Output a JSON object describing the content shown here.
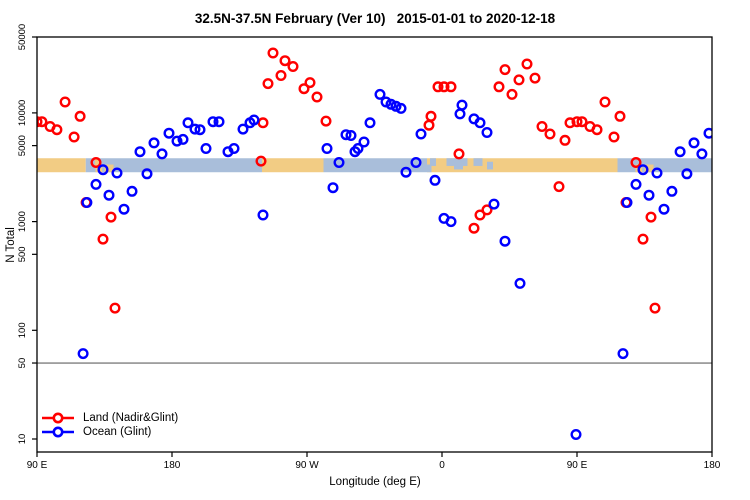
{
  "title": "32.5N-37.5N February (Ver 10)   2015-01-01 to 2020-12-18",
  "chart_data": {
    "type": "scatter",
    "x_axis": {
      "title": "Longitude (deg E)",
      "range": [
        90,
        540
      ],
      "ticks": [
        {
          "value": 90,
          "label": "90 E"
        },
        {
          "value": 180,
          "label": "180"
        },
        {
          "value": 270,
          "label": "90 W"
        },
        {
          "value": 360,
          "label": "0"
        },
        {
          "value": 450,
          "label": "90 E"
        },
        {
          "value": 540,
          "label": "180"
        }
      ]
    },
    "y_axis": {
      "title": "N Total",
      "scale": "log",
      "range": [
        10,
        50000
      ],
      "ticks": [
        {
          "value": 50000,
          "label": "50000"
        },
        {
          "value": 10000,
          "label": "10000"
        },
        {
          "value": 5000,
          "label": "5000"
        },
        {
          "value": 1000,
          "label": "1000"
        },
        {
          "value": 500,
          "label": "500"
        },
        {
          "value": 100,
          "label": "100"
        },
        {
          "value": 50,
          "label": "50"
        },
        {
          "value": 10,
          "label": "10"
        }
      ]
    },
    "reference_line": {
      "value": 50,
      "color": "#7f7f7f"
    },
    "coast_band": {
      "n_center": 3300,
      "colors": {
        "land": "#F2CC84",
        "ocean": "#A9BEDA"
      },
      "segments": [
        {
          "from": 90,
          "to": 122.5,
          "type": "land"
        },
        {
          "from": 122.5,
          "to": 240,
          "type": "ocean"
        },
        {
          "from": 240,
          "to": 281,
          "type": "land"
        },
        {
          "from": 281,
          "to": 350,
          "type": "ocean"
        },
        {
          "from": 350,
          "to": 477,
          "type": "land"
        },
        {
          "from": 477,
          "to": 540,
          "type": "ocean"
        }
      ],
      "patches": [
        {
          "from": 129,
          "to": 133.5,
          "type": "land",
          "pos": "bottom"
        },
        {
          "from": 135,
          "to": 141,
          "type": "land",
          "pos": "bottom"
        },
        {
          "from": 128.5,
          "to": 131.5,
          "type": "land",
          "pos": "top"
        },
        {
          "from": 489,
          "to": 493.5,
          "type": "land",
          "pos": "bottom"
        },
        {
          "from": 495,
          "to": 501,
          "type": "land",
          "pos": "bottom"
        },
        {
          "from": 352,
          "to": 356,
          "type": "ocean",
          "pos": "top"
        },
        {
          "from": 363,
          "to": 377,
          "type": "ocean",
          "pos": "top"
        },
        {
          "from": 368,
          "to": 374,
          "type": "ocean",
          "pos": "mid"
        },
        {
          "from": 381,
          "to": 387,
          "type": "ocean",
          "pos": "top"
        },
        {
          "from": 350,
          "to": 353,
          "type": "ocean",
          "pos": "bottom"
        },
        {
          "from": 390,
          "to": 394,
          "type": "ocean",
          "pos": "mid"
        }
      ]
    },
    "series": [
      {
        "name": "Land (Nadir&Glint)",
        "color": "#ff0000",
        "points": [
          [
            90,
            8300
          ],
          [
            93.3,
            8300
          ],
          [
            98.7,
            7500
          ],
          [
            103.3,
            7000
          ],
          [
            108.7,
            12600
          ],
          [
            114.7,
            6000
          ],
          [
            118.7,
            9300
          ],
          [
            122.7,
            1500
          ],
          [
            129.3,
            3500
          ],
          [
            134,
            690
          ],
          [
            139.3,
            1100
          ],
          [
            142,
            160
          ],
          [
            239.3,
            3600
          ],
          [
            240.7,
            8100
          ],
          [
            244,
            18600
          ],
          [
            247.3,
            35600
          ],
          [
            252.7,
            22100
          ],
          [
            255.3,
            30200
          ],
          [
            260.7,
            26700
          ],
          [
            268,
            16700
          ],
          [
            272,
            19000
          ],
          [
            276.7,
            14000
          ],
          [
            282.7,
            8400
          ],
          [
            351.3,
            7700
          ],
          [
            352.7,
            9300
          ],
          [
            357.3,
            17400
          ],
          [
            361.3,
            17400
          ],
          [
            366,
            17400
          ],
          [
            371.3,
            4200
          ],
          [
            381.3,
            870
          ],
          [
            385.3,
            1150
          ],
          [
            390,
            1280
          ],
          [
            398,
            17400
          ],
          [
            402,
            25000
          ],
          [
            406.7,
            14800
          ],
          [
            411.3,
            20100
          ],
          [
            416.7,
            28200
          ],
          [
            422,
            20900
          ],
          [
            426.7,
            7500
          ],
          [
            432,
            6400
          ],
          [
            438,
            2100
          ],
          [
            442,
            5600
          ],
          [
            445.3,
            8100
          ],
          [
            450,
            8300
          ],
          [
            453.3,
            8300
          ],
          [
            458.7,
            7500
          ],
          [
            463.3,
            7000
          ],
          [
            468.7,
            12600
          ],
          [
            474.7,
            6000
          ],
          [
            478.7,
            9300
          ],
          [
            482.7,
            1500
          ],
          [
            489.3,
            3500
          ],
          [
            494,
            690
          ],
          [
            499.3,
            1100
          ],
          [
            502,
            160
          ]
        ]
      },
      {
        "name": "Ocean (Glint)",
        "color": "#0000ff",
        "points": [
          [
            120.7,
            61
          ],
          [
            123.3,
            1500
          ],
          [
            129.3,
            2200
          ],
          [
            134,
            3000
          ],
          [
            138,
            1750
          ],
          [
            143.3,
            2800
          ],
          [
            148,
            1300
          ],
          [
            153.3,
            1900
          ],
          [
            158.7,
            4400
          ],
          [
            163.3,
            2750
          ],
          [
            168,
            5300
          ],
          [
            173.3,
            4200
          ],
          [
            178,
            6500
          ],
          [
            183.3,
            5500
          ],
          [
            187.3,
            5700
          ],
          [
            190.7,
            8100
          ],
          [
            195.3,
            7100
          ],
          [
            198.7,
            7000
          ],
          [
            202.7,
            4700
          ],
          [
            207.3,
            8300
          ],
          [
            211.3,
            8300
          ],
          [
            217.3,
            4400
          ],
          [
            221.3,
            4700
          ],
          [
            227.3,
            7100
          ],
          [
            232,
            8100
          ],
          [
            234.7,
            8600
          ],
          [
            240.7,
            1150
          ],
          [
            283.3,
            4700
          ],
          [
            287.3,
            2050
          ],
          [
            291.3,
            3500
          ],
          [
            296,
            6300
          ],
          [
            299.3,
            6200
          ],
          [
            302,
            4400
          ],
          [
            304,
            4700
          ],
          [
            308,
            5400
          ],
          [
            312,
            8100
          ],
          [
            318.7,
            14800
          ],
          [
            322.7,
            12600
          ],
          [
            326,
            12000
          ],
          [
            329.3,
            11500
          ],
          [
            332.7,
            11000
          ],
          [
            336,
            2850
          ],
          [
            342.7,
            3500
          ],
          [
            346,
            6400
          ],
          [
            355.3,
            2400
          ],
          [
            361.3,
            1070
          ],
          [
            366,
            1000
          ],
          [
            372,
            9800
          ],
          [
            373.3,
            11800
          ],
          [
            381.3,
            8800
          ],
          [
            385.3,
            8100
          ],
          [
            390,
            6600
          ],
          [
            394.7,
            1450
          ],
          [
            402,
            660
          ],
          [
            412,
            270
          ],
          [
            449.3,
            11
          ],
          [
            480.7,
            61
          ],
          [
            483.3,
            1500
          ],
          [
            489.3,
            2200
          ],
          [
            494,
            3000
          ],
          [
            498,
            1750
          ],
          [
            503.3,
            2800
          ],
          [
            508,
            1300
          ],
          [
            513.3,
            1900
          ],
          [
            518.7,
            4400
          ],
          [
            523.3,
            2750
          ],
          [
            528,
            5300
          ],
          [
            533.3,
            4200
          ],
          [
            538,
            6500
          ]
        ]
      }
    ],
    "legend": {
      "position": "bottom-left",
      "items": [
        {
          "label": "Land (Nadir&Glint)",
          "color": "#ff0000"
        },
        {
          "label": "Ocean (Glint)",
          "color": "#0000ff"
        }
      ]
    }
  }
}
